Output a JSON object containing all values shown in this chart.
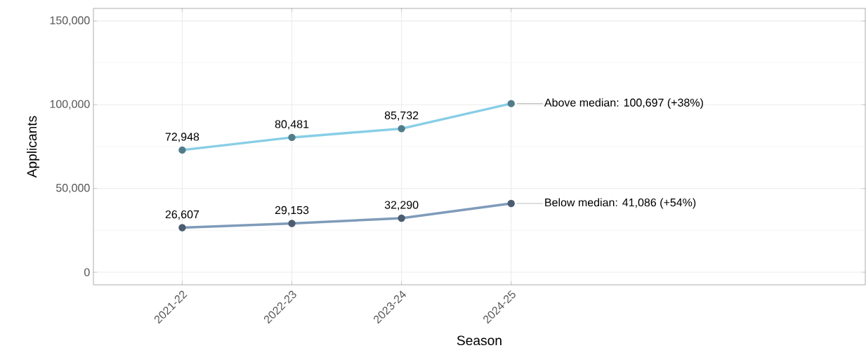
{
  "chart_data": {
    "type": "line",
    "xlabel": "Season",
    "ylabel": "Applicants",
    "categories": [
      "2021-22",
      "2022-23",
      "2023-24",
      "2024-25"
    ],
    "series": [
      {
        "color": "#87cee6",
        "values": [
          72948,
          80481,
          85732,
          100697
        ],
        "value_labels": [
          "72,948",
          "80,481",
          "85,732",
          null
        ]
      },
      {
        "color": "#7f9bba",
        "values": [
          26607,
          29153,
          32290,
          41086
        ],
        "value_labels": [
          "26,607",
          "29,153",
          "32,290",
          null
        ]
      }
    ],
    "annotations": [
      {
        "text": "Above median: 100,697 (+38%)",
        "x": "2024-25",
        "y": 100697
      },
      {
        "text": "Below median: 41,086 (+54%)",
        "x": "2024-25",
        "y": 41086
      }
    ],
    "ylim": [
      -7500,
      157500
    ],
    "yticks": [
      {
        "value": 0,
        "label": "0"
      },
      {
        "value": 50000,
        "label": "50,000"
      },
      {
        "value": 100000,
        "label": "100,000"
      },
      {
        "value": 150000,
        "label": "150,000"
      }
    ],
    "grid": true,
    "marker": "circle",
    "line_style": "solid"
  }
}
